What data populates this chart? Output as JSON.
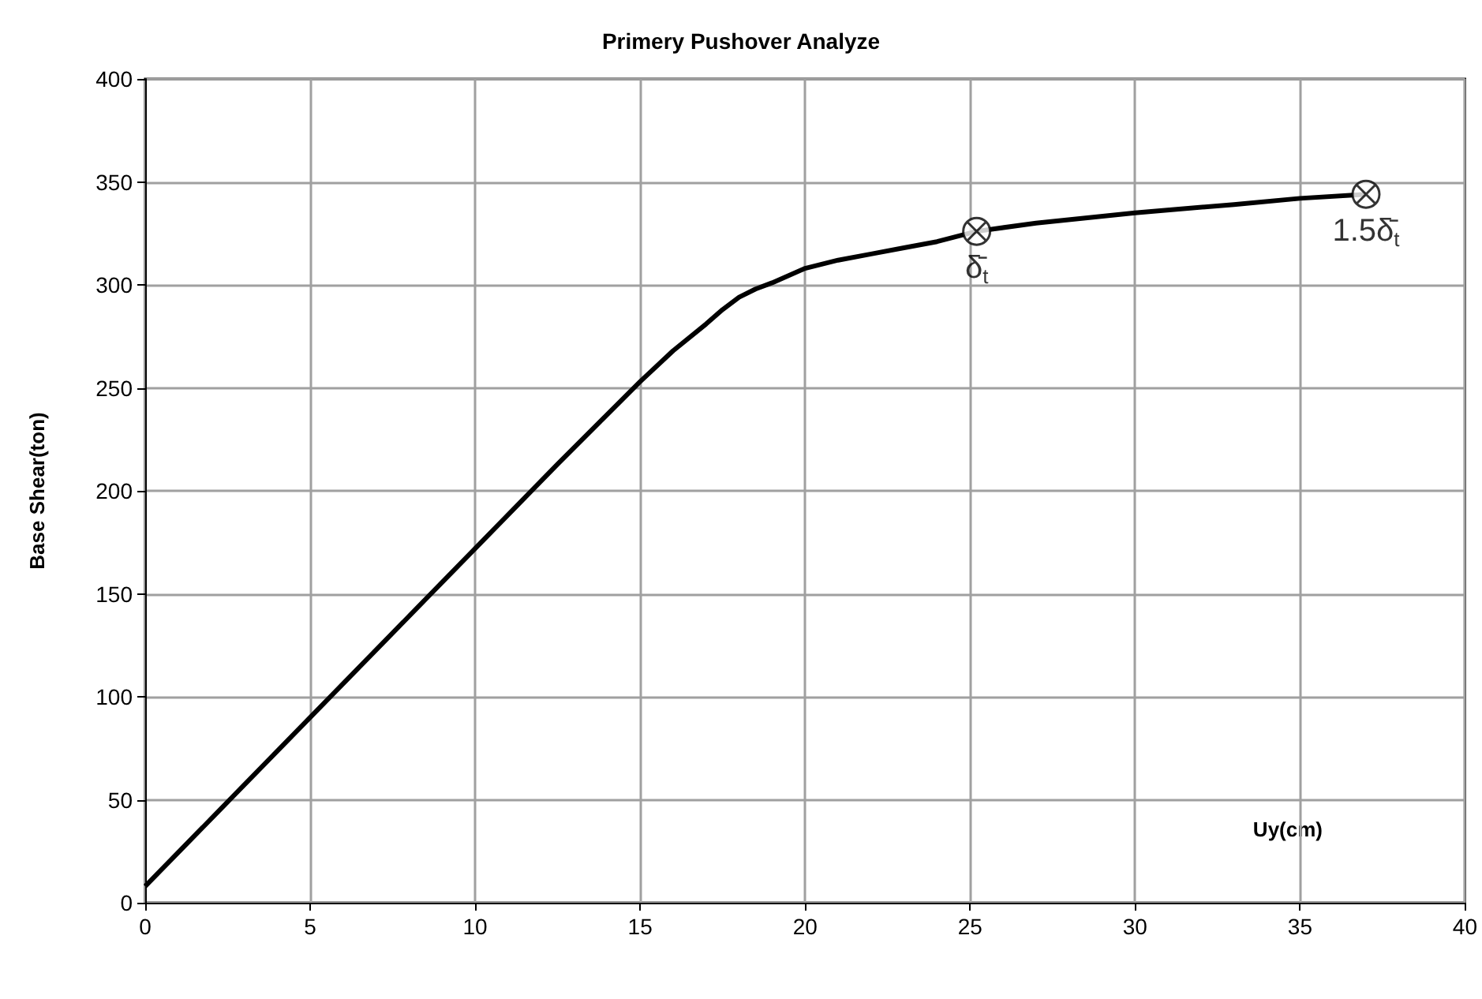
{
  "chart_data": {
    "type": "line",
    "title": "Primery Pushover Analyze",
    "xlabel": "Uy(cm)",
    "ylabel": "Base Shear(ton)",
    "series": [
      {
        "color": "#000000",
        "x": [
          0,
          2.5,
          5,
          7.5,
          10,
          12.5,
          15,
          16,
          17,
          17.5,
          18,
          18.5,
          19,
          20,
          21,
          22,
          23,
          24,
          25.2,
          27,
          30,
          33,
          35,
          37
        ],
        "values": [
          8,
          49,
          90,
          131,
          172,
          213,
          253,
          268,
          281,
          288,
          294,
          298,
          301,
          308,
          312,
          315,
          318,
          321,
          326,
          330,
          335,
          339,
          342,
          344
        ]
      },
      {
        "type": "scatter",
        "marker": "cross",
        "color": "#000000",
        "x": [
          25.2,
          37
        ],
        "values": [
          326,
          344
        ]
      }
    ],
    "annotations": [
      {
        "text": "δ̄$_{t}$",
        "x": 25.2,
        "y": 326
      },
      {
        "text": "1.5δ̄$_{t}$",
        "x": 37,
        "y": 344
      }
    ],
    "xlim": [
      0,
      40
    ],
    "xticks": [
      0,
      5,
      10,
      15,
      20,
      25,
      30,
      35,
      40
    ],
    "ylim": [
      0,
      400
    ],
    "yticks": [
      0,
      50,
      100,
      150,
      200,
      250,
      300,
      350,
      400
    ],
    "grid": true,
    "marker": "none",
    "line_style": "solid"
  }
}
